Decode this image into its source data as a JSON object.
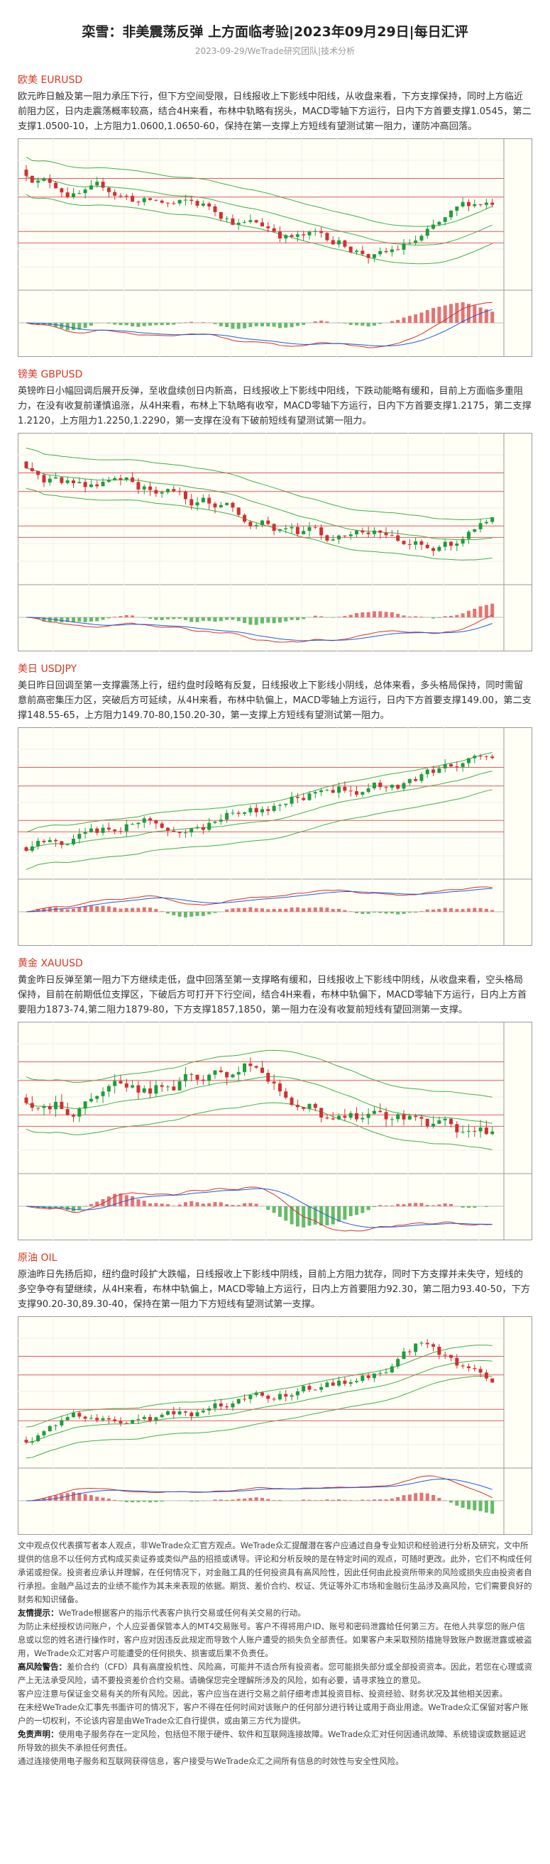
{
  "header": {
    "title": "栾雪：非美震荡反弹 上方面临考验|2023年09月29日|每日汇评",
    "subtitle": "2023-09-29/WeTrade研究团队|技术分析"
  },
  "sections": [
    {
      "heading": "欧美 EURUSD",
      "body": "欧元昨日触及第一阻力承压下行，但下方空间受限，日线报收上下影线中阳线，从收盘来看，下方支撑保持，同时上方临近前阻力区，日内走震荡概率较高，结合4H来看，布林中轨略有拐头，MACD零轴下方运行，日内下方首要支撑1.0545，第二支撑1.0500-10，上方阻力1.0600,1.0650-60，保持在第一支撑上方短线有望测试第一阻力，谨防冲高回落。"
    },
    {
      "heading": "镑美 GBPUSD",
      "body": "英镑昨日小幅回调后展开反弹，至收盘续创日内新高，日线报收上下影线中阳线，下跌动能略有缓和，目前上方面临多重阻力，在没有收复前谨慎追涨，从4H来看，布林上下轨略有收窄，MACD零轴下方运行，日内下方首要支撑1.2175，第二支撑1.2120，上方阻力1.2250,1.2290，第一支撑在没有下破前短线有望测试第一阻力。"
    },
    {
      "heading": "美日 USDJPY",
      "body": "美日昨日回调至第一支撑震荡上行，纽约盘时段略有反复，日线报收上下影线小阴线，总体来看，多头格局保持，同时需留意前高密集压力区，突破后方可延续，从4H来看，布林中轨偏上，MACD零轴上方运行，日内下方首要支撑149.00，第二支撑148.55-65，上方阻力149.70-80,150.20-30，第一支撑上方短线有望测试第一阻力。"
    },
    {
      "heading": "黄金 XAUUSD",
      "body": "黄金昨日反弹至第一阻力下方继续走低，盘中回落至第一支撑略有缓和，日线报收上下影线中阴线，从收盘来看，空头格局保持，目前在前期低位支撑区，下破后方可打开下行空间，结合4H来看，布林中轨偏下，MACD零轴下方运行，日内上方首要阻力1873-74,第二阻力1879-80，下方支撑1857,1850，第一阻力在没有收复前短线有望回测第一支撑。"
    },
    {
      "heading": "原油 OIL",
      "body": "原油昨日先扬后抑，纽约盘时段扩大跌幅，日线报收上下影线中阴线，目前上方阻力犹存，同时下方支撑并未失守，短线的多空争夺有望继续，从4H来看，布林中轨偏上，MACD零轴上方运行，日内上方首要阻力92.30，第二阻力93.40-50，下方支撑90.20-30,89.30-40，保持在第一阻力下方短线有望测试第一支撑。"
    }
  ],
  "disclaimer": [
    {
      "text": "文中观点仅代表撰写者本人观点，非WeTrade众汇官方观点。WeTrade众汇提醒潜在客户应通过自身专业知识和经验进行分析及研究，文中所提供的信息不以任何方式构成买卖证券或类似产品的招揽或诱导。评论和分析反映的是在特定时间的观点，可随时更改。此外，它们不构成任何承诺或担保。投资者应承认并理解，在任何情况下，对金融工具的任何投资具有高风险性，因此任何由此投资所带来的风险或损失应由投资者自行承担。金融产品过去的业绩不能作为其未来表现的依据。期货、差价合约、权证、凭证等外汇市场和金融衍生品涉及高风险，它们需要良好的财务和知识储备。"
    },
    {
      "label": "友情提示：",
      "text": "WeTrade根据客户的指示代表客户执行交易或任何有关交易的行动。"
    },
    {
      "text": "为防止未经授权访问账户，个人应妥善保管本人的MT4交易账号。客户不得将用户ID、账号和密码泄露给任何第三方。在他人共享您的账户信息或以您的姓名进行操作时，客户应对因违反此规定而导致个人账户遭受的损失负全部责任。如果客户未采取预防措施导致账户数据泄露或被盗用，WeTrade众汇对客户可能遭受的任何损失、损害或后果不负责任。"
    },
    {
      "label": "高风险警告：",
      "text": "差价合约（CFD）具有高度投机性、风险高，可能并不适合所有投资者。您可能损失部分或全部投资资本。因此，若您在心理或资产上无法承受风险，请不要投资差价合约交易。请确保您完全理解所涉及的风险，如有必要，请寻求独立的意见。"
    },
    {
      "text": "客户应注意与保证金交易有关的所有风险。因此，客户应当在进行交易之前仔细考虑其投资目标、投资经验、财务状况及其他相关因素。"
    },
    {
      "text": "在未经WeTrade众汇事先书面许可的情况下，客户不得在任何时间对该账户的任何部分进行转让或用于商业用途。WeTrade众汇保留对客户账户的一切权利，不论该内容是由WeTrade众汇自行提供，或由第三方代为提供。"
    },
    {
      "label": "免责声明：",
      "text": "使用电子服务存在一定风险，包括但不限于硬件、软件和互联网连接故障。WeTrade众汇对任何因通讯故障、系统错误或数据延迟所导致的损失不承担任何责任。"
    },
    {
      "text": "通过连接使用电子服务和互联网获得信息，客户接受与WeTrade众汇之间所有信息的时效性与安全性风险。"
    }
  ]
}
